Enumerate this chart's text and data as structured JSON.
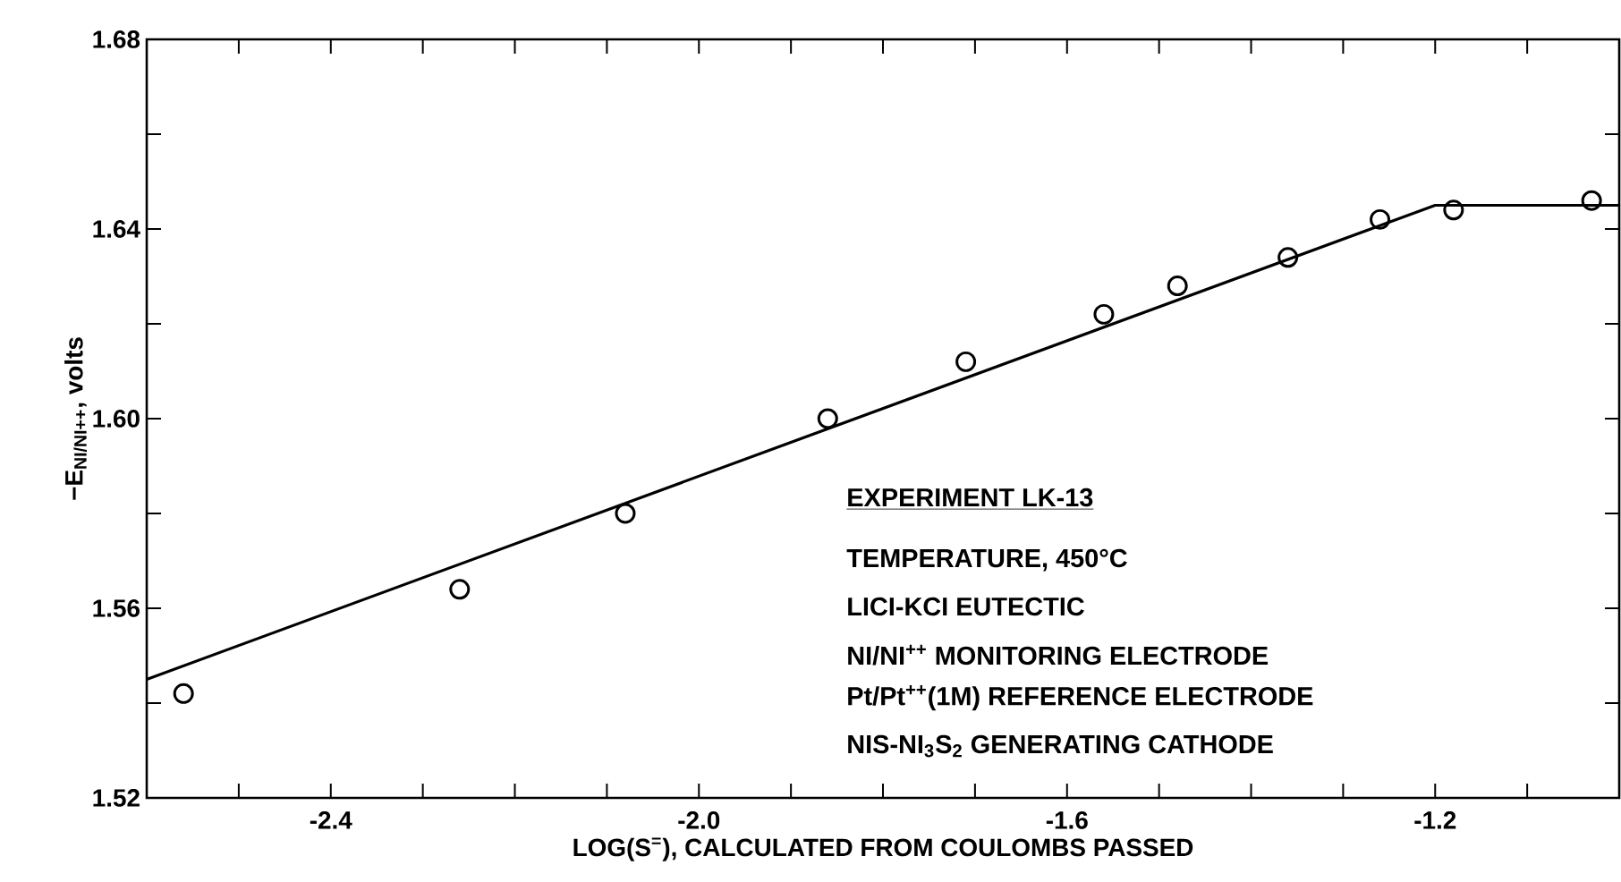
{
  "chart_data": {
    "type": "scatter",
    "xlabel": "LOG(S$^{=}$), CALCULATED FROM COULOMBS PASSED",
    "ylabel": "−E$_{NI/NI++}$, volts",
    "xlim": [
      -2.6,
      -1.0
    ],
    "ylim": [
      1.52,
      1.68
    ],
    "xticks": [
      {
        "value": -2.5,
        "label": null
      },
      -2.4,
      {
        "value": -2.3,
        "label": null
      },
      {
        "value": -2.2,
        "label": null
      },
      {
        "value": -2.1,
        "label": null
      },
      {
        "value": -2.0,
        "label": "-2.0"
      },
      {
        "value": -1.9,
        "label": null
      },
      {
        "value": -1.8,
        "label": null
      },
      {
        "value": -1.7,
        "label": null
      },
      -1.6,
      {
        "value": -1.5,
        "label": null
      },
      {
        "value": -1.4,
        "label": null
      },
      {
        "value": -1.3,
        "label": null
      },
      -1.2,
      {
        "value": -1.1,
        "label": null
      }
    ],
    "yticks": [
      1.52,
      {
        "value": 1.54,
        "label": null
      },
      1.56,
      {
        "value": 1.58,
        "label": null
      },
      {
        "value": 1.6,
        "label": "1.60"
      },
      {
        "value": 1.62,
        "label": null
      },
      1.64,
      {
        "value": 1.66,
        "label": null
      },
      1.68
    ],
    "grid": false,
    "series": [
      {
        "marker": "circle",
        "color": "#000000",
        "x": [
          -2.56,
          -2.26,
          -2.08,
          -1.86,
          -1.71,
          -1.56,
          -1.48,
          -1.36,
          -1.26,
          -1.18,
          -1.03
        ],
        "values": [
          1.542,
          1.564,
          1.58,
          1.6,
          1.612,
          1.622,
          1.628,
          1.634,
          1.642,
          1.644,
          1.646
        ]
      },
      {
        "type": "line",
        "color": "#000000",
        "line_style": "solid",
        "x": [
          -2.6,
          -1.2,
          -1.0
        ],
        "values": [
          1.545,
          1.645,
          1.645
        ]
      }
    ],
    "annotations": [
      "EXPERIMENT LK-13",
      "TEMPERATURE, 450°C",
      "LICI-KCI EUTECTIC",
      "NI/NI$^{++}$ MONITORING ELECTRODE",
      "Pt/Pt$^{++}$(1M) REFERENCE ELECTRODE",
      "NIS-NI$_{3}$S$_{2}$ GENERATING CATHODE"
    ]
  }
}
